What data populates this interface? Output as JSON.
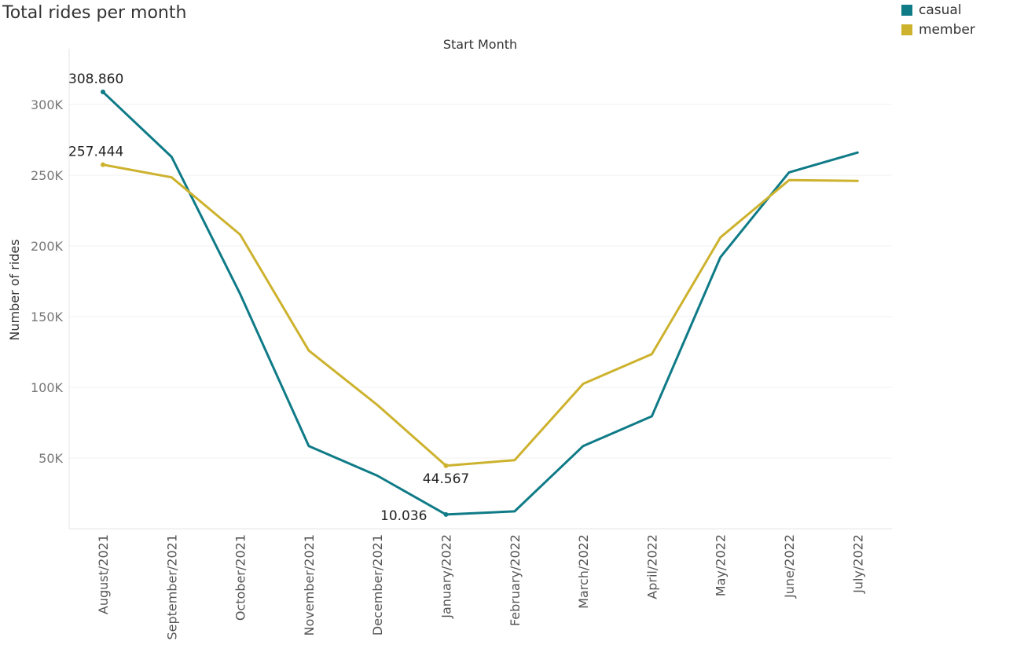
{
  "title": "Total rides per month",
  "legend": {
    "items": [
      {
        "label": "casual",
        "color": "#0f7b87"
      },
      {
        "label": "member",
        "color": "#cdb22e"
      }
    ]
  },
  "chart_data": {
    "type": "line",
    "title": "Total rides per month",
    "column_header": "Start Month",
    "xlabel": "",
    "ylabel": "Number of rides",
    "ylim": [
      0,
      330000
    ],
    "yticks": [
      50000,
      100000,
      150000,
      200000,
      250000,
      300000
    ],
    "ytick_labels": [
      "50K",
      "100K",
      "150K",
      "200K",
      "250K",
      "300K"
    ],
    "grid": true,
    "legend_position": "top-right",
    "categories": [
      "August/2021",
      "September/2021",
      "October/2021",
      "November/2021",
      "December/2021",
      "January/2022",
      "February/2022",
      "March/2022",
      "April/2022",
      "May/2022",
      "June/2022",
      "July/2022"
    ],
    "series": [
      {
        "name": "casual",
        "color": "#0f7b87",
        "values": [
          308860,
          263000,
          166000,
          58500,
          37500,
          10036,
          12300,
          58500,
          79500,
          192000,
          252000,
          266000
        ]
      },
      {
        "name": "member",
        "color": "#cdb22e",
        "values": [
          257444,
          248500,
          208000,
          126000,
          87500,
          44567,
          48500,
          102500,
          123500,
          206000,
          246500,
          246000
        ]
      }
    ],
    "annotations": [
      {
        "series": 0,
        "index": 0,
        "text": "308.860",
        "position": "above"
      },
      {
        "series": 1,
        "index": 0,
        "text": "257.444",
        "position": "above"
      },
      {
        "series": 1,
        "index": 5,
        "text": "44.567",
        "position": "below"
      },
      {
        "series": 0,
        "index": 5,
        "text": "10.036",
        "position": "left"
      }
    ]
  }
}
